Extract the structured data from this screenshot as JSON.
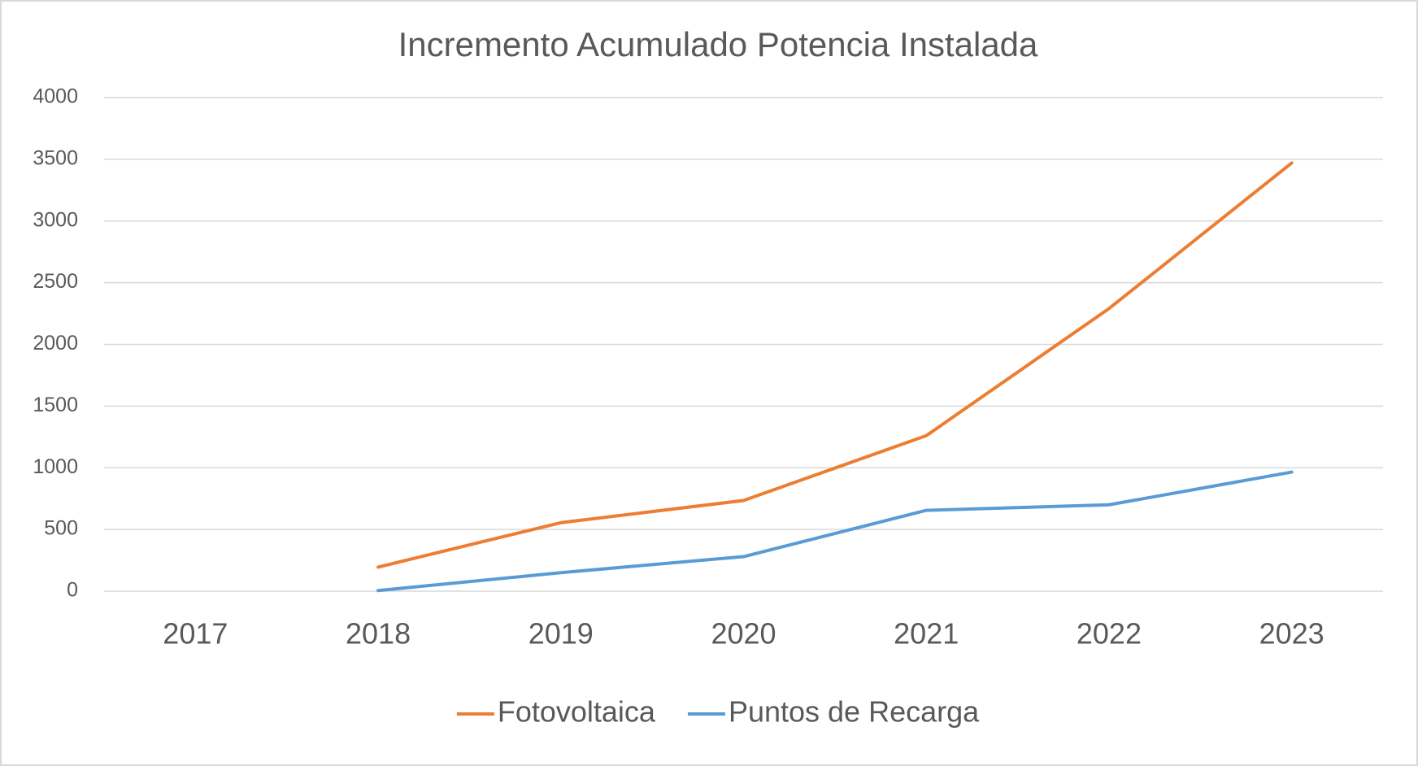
{
  "chart_data": {
    "type": "line",
    "title": "Incremento Acumulado Potencia Instalada",
    "categories": [
      "2017",
      "2018",
      "2019",
      "2020",
      "2021",
      "2022",
      "2023"
    ],
    "series": [
      {
        "name": "Fotovoltaica",
        "color": "#ed7d31",
        "values": [
          null,
          195,
          555,
          735,
          1260,
          2290,
          3470
        ]
      },
      {
        "name": "Puntos de Recarga",
        "color": "#5b9bd5",
        "values": [
          null,
          5,
          150,
          280,
          655,
          700,
          965
        ]
      }
    ],
    "ylim": [
      0,
      4000
    ],
    "yticks": [
      0,
      500,
      1000,
      1500,
      2000,
      2500,
      3000,
      3500,
      4000
    ],
    "grid": true,
    "legend": "bottom"
  }
}
